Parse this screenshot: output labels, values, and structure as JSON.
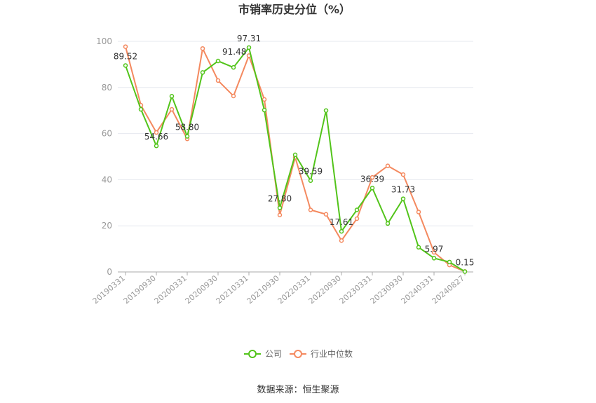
{
  "chart_data": {
    "type": "line",
    "title": "市销率历史分位（%）",
    "ylim": [
      0,
      100
    ],
    "y_ticks": [
      0,
      20,
      40,
      60,
      80,
      100
    ],
    "x": [
      "20190331",
      "20190630",
      "20190930",
      "20191231",
      "20200331",
      "20200630",
      "20200930",
      "20201231",
      "20210331",
      "20210630",
      "20210930",
      "20211231",
      "20220331",
      "20220630",
      "20220930",
      "20221231",
      "20230331",
      "20230630",
      "20230930",
      "20231231",
      "20240331",
      "20240630",
      "20240827"
    ],
    "x_tick_labels": [
      "20190331",
      "20190930",
      "20200331",
      "20200930",
      "20210331",
      "20210930",
      "20220331",
      "20220930",
      "20230331",
      "20230930",
      "20240331",
      "20240827"
    ],
    "grid": true,
    "legend_position": "bottom",
    "series": [
      {
        "name": "公司",
        "color": "#52c41a",
        "values": [
          89.52,
          70.5,
          54.66,
          76.2,
          58.8,
          86.5,
          91.48,
          88.7,
          97.31,
          70.2,
          27.8,
          50.8,
          39.59,
          70.0,
          17.61,
          26.9,
          36.39,
          21.0,
          31.73,
          10.7,
          5.97,
          4.3,
          0.15
        ],
        "data_labels": [
          {
            "index": 0,
            "text": "89.52"
          },
          {
            "index": 2,
            "text": "54.66"
          },
          {
            "index": 4,
            "text": "58.80"
          },
          {
            "index": 6,
            "text": "91.48"
          },
          {
            "index": 8,
            "text": "97.31"
          },
          {
            "index": 10,
            "text": "27.80"
          },
          {
            "index": 12,
            "text": "39.59"
          },
          {
            "index": 14,
            "text": "17.61"
          },
          {
            "index": 16,
            "text": "36.39"
          },
          {
            "index": 18,
            "text": "31.73"
          },
          {
            "index": 20,
            "text": "5.97"
          },
          {
            "index": 22,
            "text": "0.15"
          }
        ]
      },
      {
        "name": "行业中位数",
        "color": "#f4895f",
        "values": [
          97.7,
          72.3,
          60.5,
          70.5,
          57.7,
          96.9,
          83.0,
          76.3,
          93.8,
          74.8,
          24.7,
          49.7,
          26.9,
          25.0,
          13.6,
          23.1,
          41.0,
          46.0,
          42.2,
          26.0,
          8.5,
          3.0,
          0.2
        ]
      }
    ],
    "source_text": "数据来源：恒生聚源"
  }
}
